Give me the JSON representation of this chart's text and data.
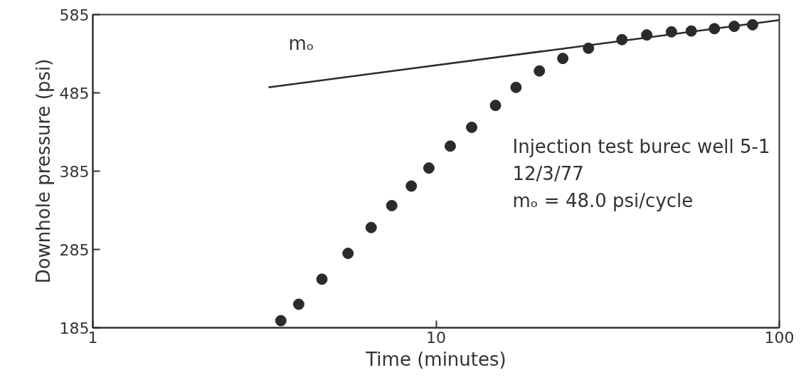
{
  "chart_data": {
    "type": "scatter",
    "xlabel": "Time (minutes)",
    "ylabel": "Downhole pressure (psi)",
    "log": "x",
    "xlim": [
      1,
      100
    ],
    "xticks": [
      1,
      10,
      100
    ],
    "ylim": [
      185,
      585
    ],
    "yticks": [
      185,
      285,
      385,
      485,
      585
    ],
    "grid": false,
    "series": [
      {
        "marker": "circle",
        "color": "#2b2b2b",
        "x": [
          3.53,
          3.98,
          4.65,
          5.54,
          6.47,
          7.43,
          8.47,
          9.53,
          11.0,
          12.7,
          14.9,
          17.1,
          20.0,
          23.4,
          27.8,
          34.8,
          41.1,
          48.5,
          55.4,
          64.7,
          73.9,
          83.6
        ],
        "values": [
          194,
          215,
          247,
          280,
          313,
          341,
          366,
          389,
          417,
          441,
          469,
          492,
          513,
          529,
          542,
          553,
          559,
          563,
          564,
          567,
          570,
          572
        ]
      },
      {
        "type": "line",
        "color": "#2b2b2b",
        "x": [
          3.25,
          100
        ],
        "values": [
          492,
          578
        ]
      }
    ],
    "annotations": [
      "mₒ",
      "Injection test burec well 5-1",
      "12/3/77",
      "mₒ = 48.0 psi/cycle"
    ]
  }
}
